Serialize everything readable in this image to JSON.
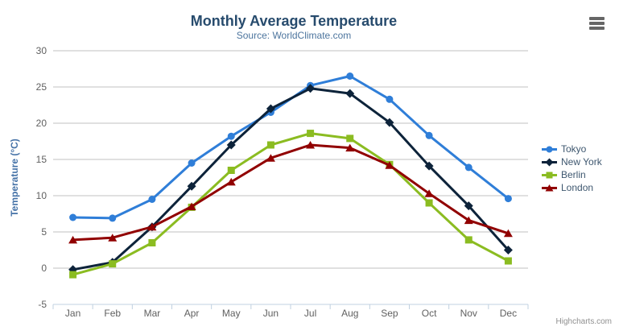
{
  "colors": {
    "title": "#274b6d",
    "subtitle": "#4d759e",
    "axis_title": "#4572A7",
    "axis_label": "#606060",
    "grid": "#C0C0C0",
    "axis_line": "#C0D0E0",
    "legend_text": "#3E576F",
    "credits": "#909090",
    "menu_icon": "#666666"
  },
  "credits": "Highcharts.com",
  "menu_icon": "hamburger-icon",
  "chart_data": {
    "type": "line",
    "title": "Monthly Average Temperature",
    "subtitle": "Source: WorldClimate.com",
    "categories": [
      "Jan",
      "Feb",
      "Mar",
      "Apr",
      "May",
      "Jun",
      "Jul",
      "Aug",
      "Sep",
      "Oct",
      "Nov",
      "Dec"
    ],
    "series": [
      {
        "name": "Tokyo",
        "color": "#2f7ed8",
        "marker": "circle",
        "values": [
          7.0,
          6.9,
          9.5,
          14.5,
          18.2,
          21.5,
          25.2,
          26.5,
          23.3,
          18.3,
          13.9,
          9.6
        ]
      },
      {
        "name": "New York",
        "color": "#0d233a",
        "marker": "diamond",
        "values": [
          -0.2,
          0.8,
          5.7,
          11.3,
          17.0,
          22.0,
          24.8,
          24.1,
          20.1,
          14.1,
          8.6,
          2.5
        ]
      },
      {
        "name": "Berlin",
        "color": "#8bbc21",
        "marker": "square",
        "values": [
          -0.9,
          0.6,
          3.5,
          8.4,
          13.5,
          17.0,
          18.6,
          17.9,
          14.3,
          9.0,
          3.9,
          1.0
        ]
      },
      {
        "name": "London",
        "color": "#910000",
        "marker": "triangle",
        "values": [
          3.9,
          4.2,
          5.7,
          8.5,
          11.9,
          15.2,
          17.0,
          16.6,
          14.2,
          10.3,
          6.6,
          4.8
        ]
      }
    ],
    "xlabel": "",
    "ylabel": "Temperature (°C)",
    "ylim": [
      -5,
      30
    ],
    "yticks": [
      -5,
      0,
      5,
      10,
      15,
      20,
      25,
      30
    ],
    "grid": true,
    "legend_position": "right"
  }
}
